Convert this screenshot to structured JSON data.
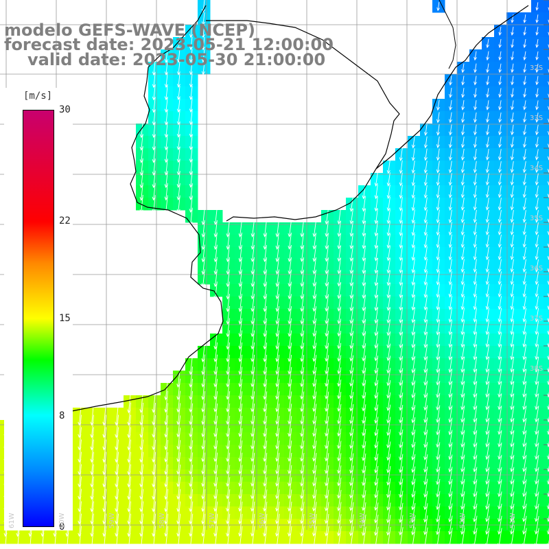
{
  "title": {
    "line1": "modelo GEFS-WAVE (NCEP)",
    "line2": "forecast date: 2023-05-21 12:00:00",
    "line3": "valid date: 2023-05-30 21:00:00"
  },
  "colorbar": {
    "unit": "[m/s]",
    "range": [
      0,
      30
    ],
    "ticks": [
      "30",
      "22",
      "15",
      "8",
      "0"
    ],
    "tick_values": [
      30,
      22,
      15,
      8,
      0
    ],
    "colors": {
      "v0": "#0000ff",
      "v4": "#0088ff",
      "v8": "#00ffff",
      "v12": "#00ff00",
      "v15": "#ffff00",
      "v19": "#ff8800",
      "v22": "#ff0000",
      "v30": "#c8006e"
    }
  },
  "latitude_labels": [
    "32S",
    "33S",
    "34S",
    "35S",
    "36S",
    "37S",
    "38S"
  ],
  "longitude_labels": [
    "61W",
    "60W",
    "59W",
    "58W",
    "57W",
    "56W",
    "55W",
    "54W",
    "53W",
    "52W",
    "51W"
  ],
  "wind_field": {
    "direction": "toward south-southwest",
    "speed_range_mps": [
      3,
      14
    ],
    "weakest_region": "northeast, near 33S–34S",
    "strongest_region": "southwest"
  },
  "map_colors": {
    "land": "#ffffff",
    "coastline": "#000000",
    "grid": "#999999",
    "vector": "#ffffff"
  }
}
